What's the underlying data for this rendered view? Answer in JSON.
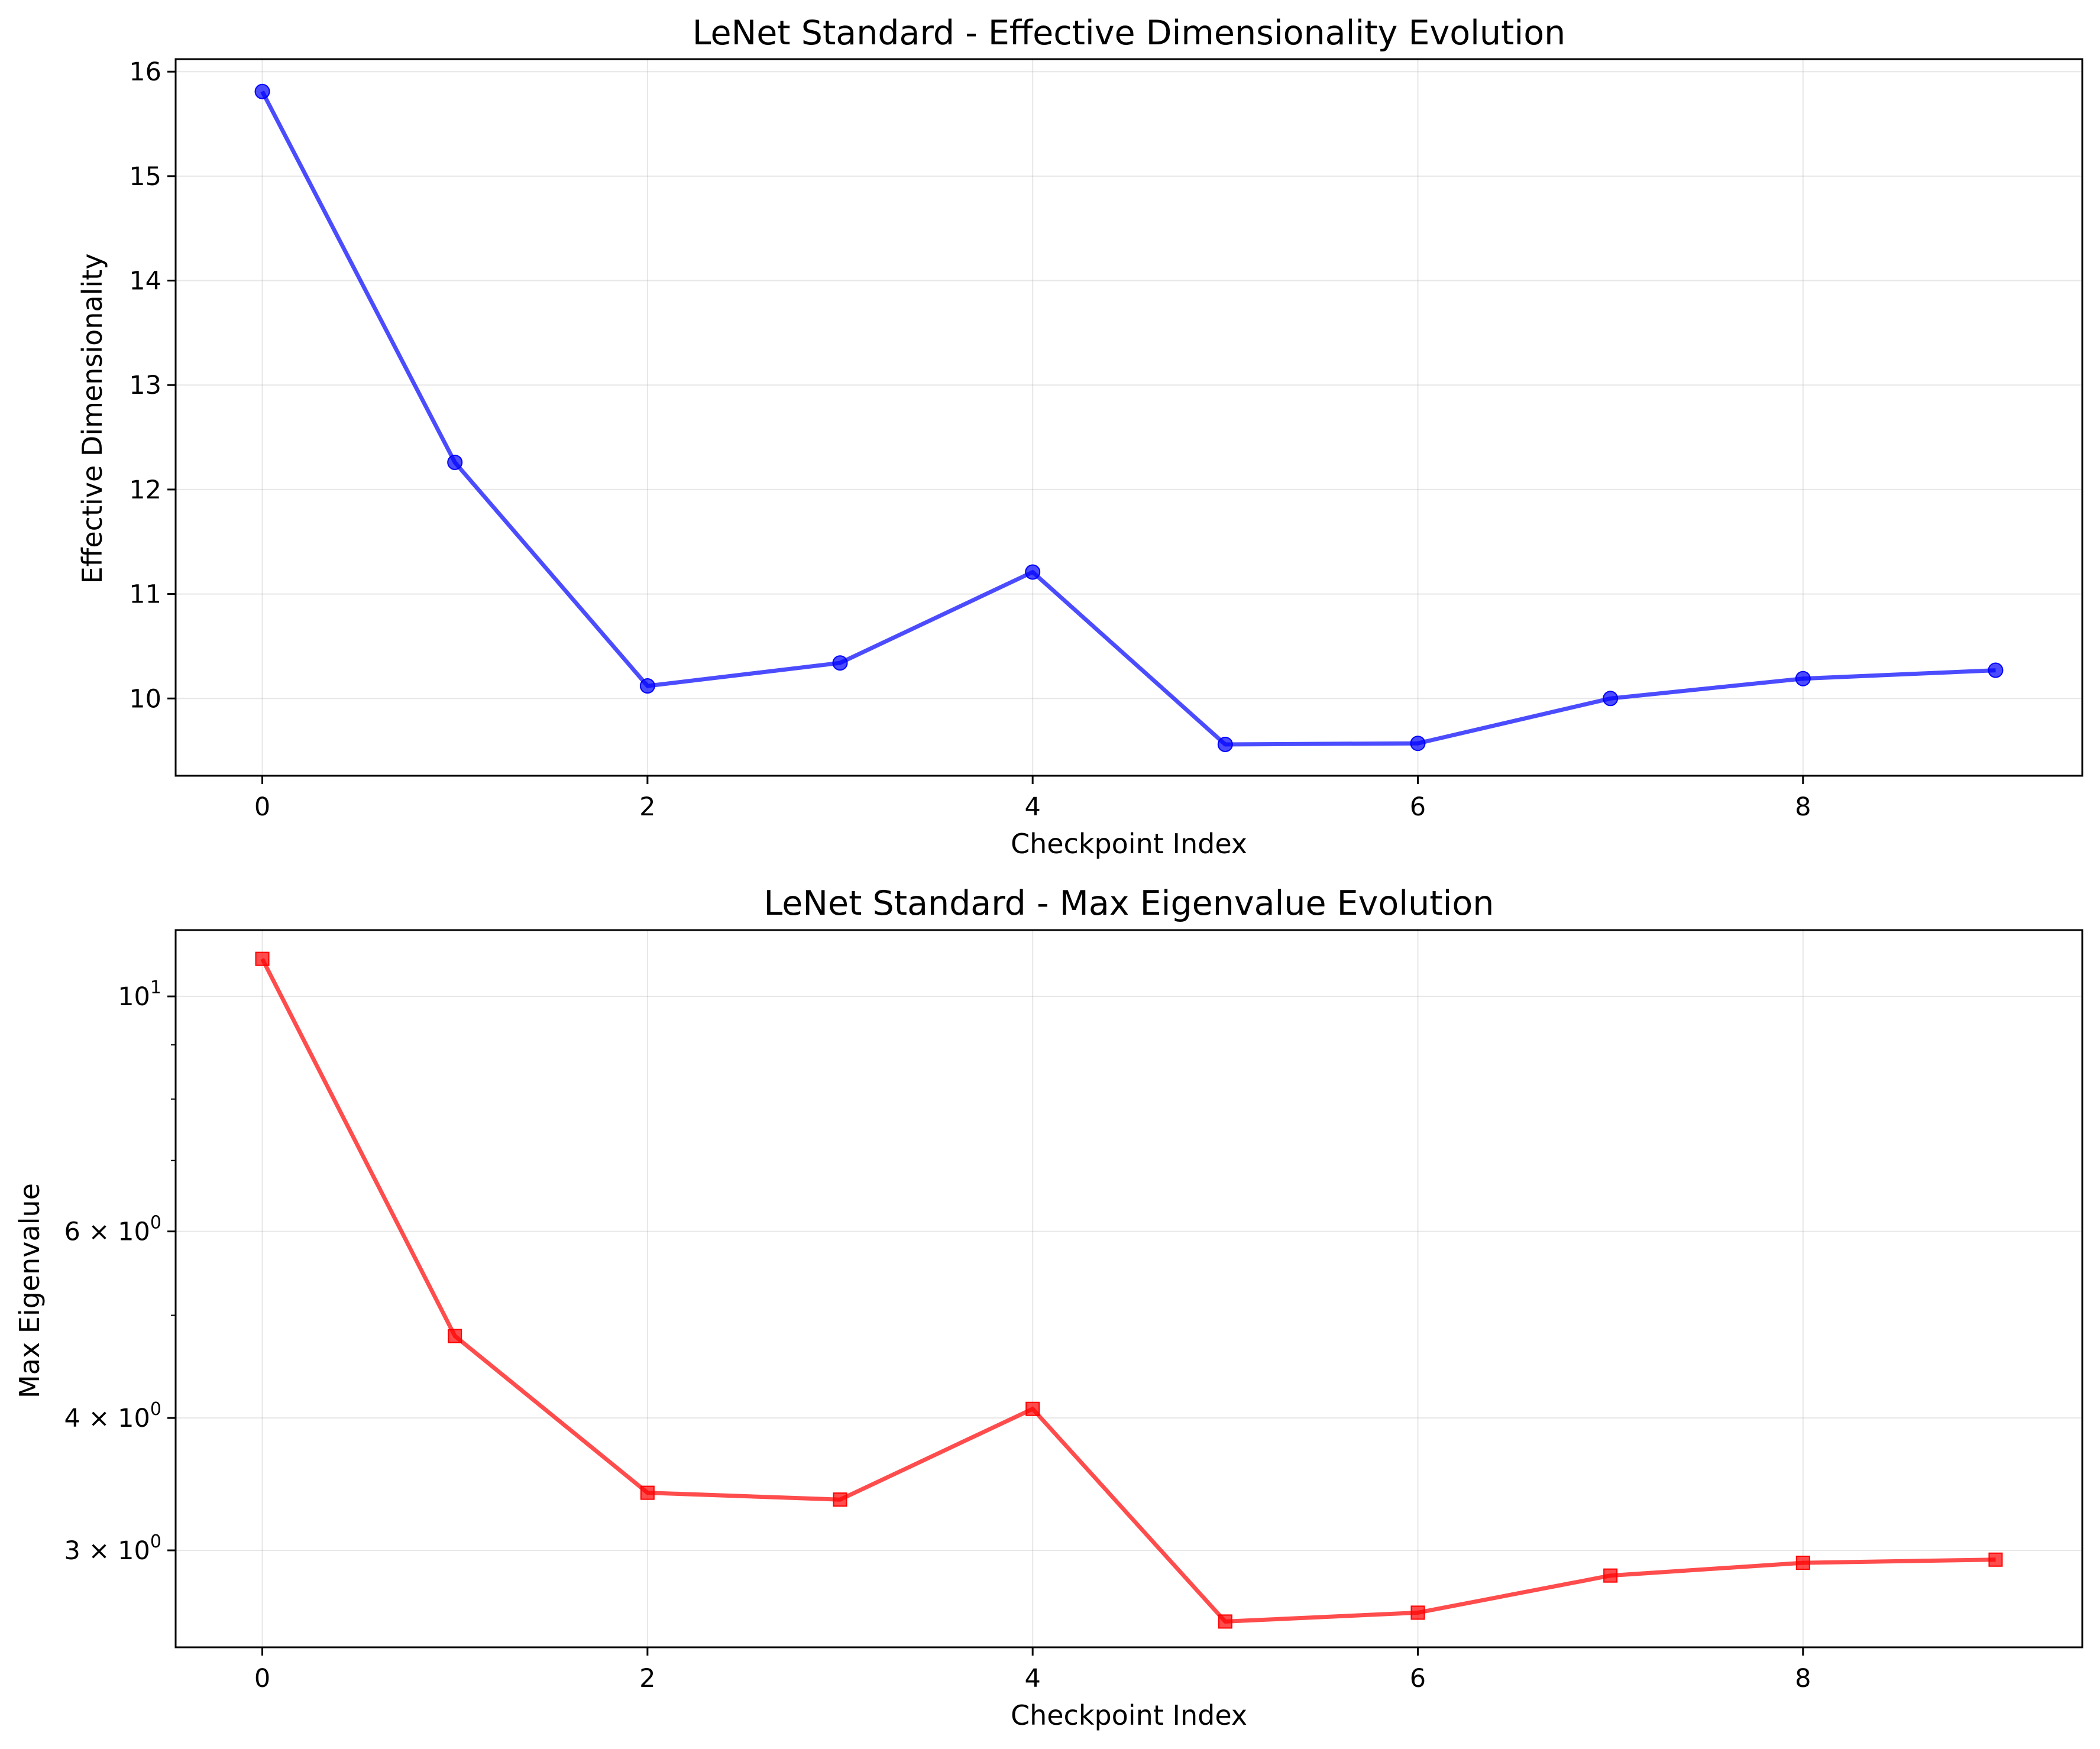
{
  "chart_data": [
    {
      "type": "line",
      "title": "LeNet Standard - Effective Dimensionality Evolution",
      "xlabel": "Checkpoint Index",
      "ylabel": "Effective Dimensionality",
      "x": [
        0,
        1,
        2,
        3,
        4,
        5,
        6,
        7,
        8,
        9
      ],
      "series": [
        {
          "values": [
            15.81,
            12.26,
            10.12,
            10.34,
            11.21,
            9.56,
            9.57,
            10.0,
            10.19,
            10.27
          ],
          "color": "#0000ff",
          "marker": "circle"
        }
      ],
      "xlim": [
        -0.45,
        9.45
      ],
      "ylim": [
        9.26,
        16.12
      ],
      "xticks": [
        0,
        2,
        4,
        6,
        8
      ],
      "yticks": [
        10,
        11,
        12,
        13,
        14,
        15,
        16
      ],
      "yscale": "linear",
      "grid": true
    },
    {
      "type": "line",
      "title": "LeNet Standard - Max Eigenvalue Evolution",
      "xlabel": "Checkpoint Index",
      "ylabel": "Max Eigenvalue",
      "x": [
        0,
        1,
        2,
        3,
        4,
        5,
        6,
        7,
        8,
        9
      ],
      "series": [
        {
          "values": [
            10.85,
            4.78,
            3.4,
            3.35,
            4.08,
            2.57,
            2.62,
            2.84,
            2.92,
            2.94
          ],
          "color": "#ff0000",
          "marker": "square"
        }
      ],
      "xlim": [
        -0.45,
        9.45
      ],
      "ylim": [
        2.43,
        11.55
      ],
      "xticks": [
        0,
        2,
        4,
        6,
        8
      ],
      "yticks": [
        {
          "value": 10,
          "base": "10",
          "exp": "1"
        },
        {
          "value": 6,
          "base": "6 × 10",
          "exp": "0"
        },
        {
          "value": 4,
          "base": "4 × 10",
          "exp": "0"
        },
        {
          "value": 3,
          "base": "3 × 10",
          "exp": "0"
        }
      ],
      "minor_yticks": [
        7,
        8,
        9,
        5
      ],
      "yscale": "log",
      "grid": true
    }
  ]
}
